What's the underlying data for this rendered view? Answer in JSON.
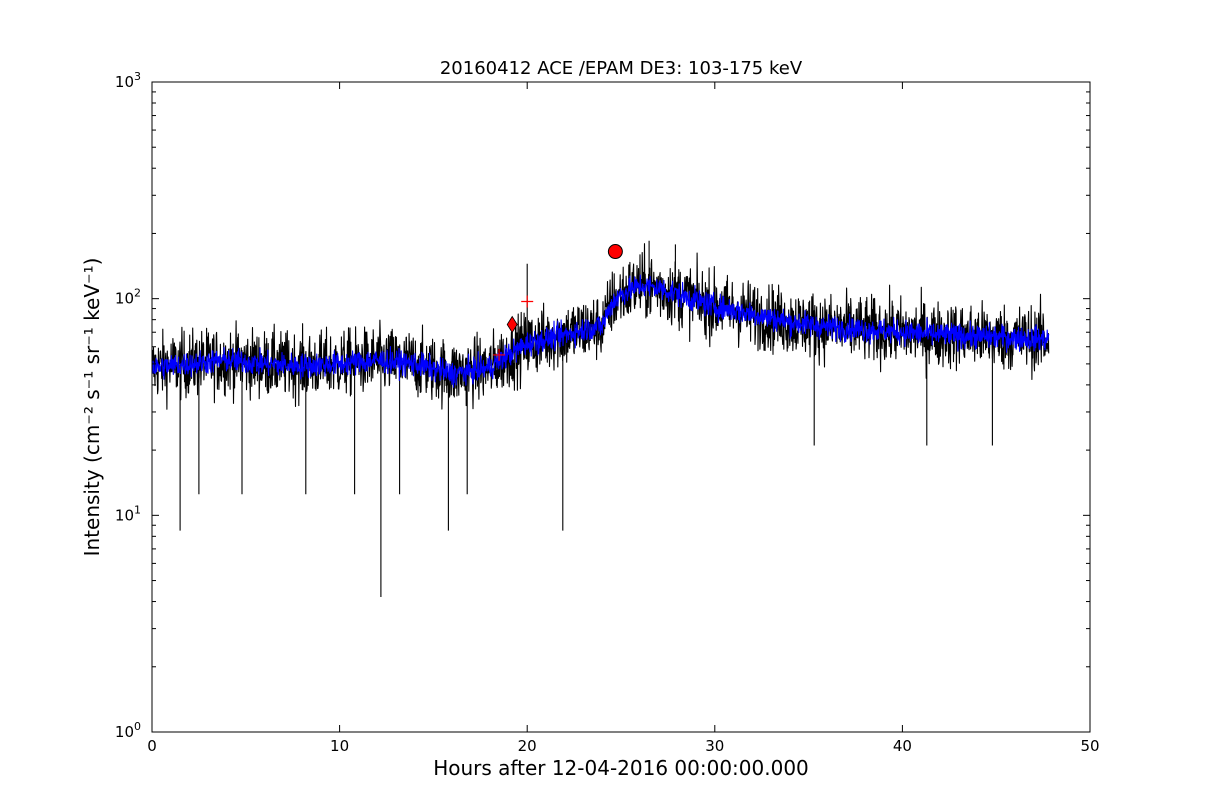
{
  "chart_data": {
    "type": "line",
    "title": "20160412 ACE /EPAM DE3: 103-175 keV",
    "xlabel": "Hours after 12-04-2016 00:00:00.000",
    "ylabel": "Intensity (cm⁻² s⁻¹ sr⁻¹ keV⁻¹)",
    "xlim": [
      0,
      50
    ],
    "ylim": [
      1,
      1000
    ],
    "yscale": "log",
    "grid": false,
    "x_ticks": [
      "0",
      "10",
      "20",
      "30",
      "40",
      "50"
    ],
    "y_ticks": [
      {
        "base": "10",
        "exp": "0",
        "value": 1
      },
      {
        "base": "10",
        "exp": "1",
        "value": 10
      },
      {
        "base": "10",
        "exp": "2",
        "value": 100
      },
      {
        "base": "10",
        "exp": "3",
        "value": 1000
      }
    ],
    "series": [
      {
        "color": "#000000",
        "x": [
          0,
          2,
          4,
          6,
          8,
          10,
          12,
          14,
          16,
          18,
          19,
          20,
          21,
          22,
          23,
          24,
          24.5,
          25,
          26,
          27,
          28,
          29,
          30,
          32,
          34,
          36,
          38,
          40,
          42,
          44,
          46,
          47.8
        ],
        "y": [
          48,
          50,
          52,
          50,
          49,
          50,
          52,
          50,
          45,
          48,
          55,
          62,
          65,
          68,
          72,
          75,
          95,
          105,
          115,
          112,
          105,
          98,
          92,
          85,
          78,
          74,
          72,
          70,
          68,
          67,
          66,
          65
        ],
        "spread": 0.6
      },
      {
        "color": "#0000ff",
        "x": [
          0,
          2,
          4,
          6,
          8,
          10,
          12,
          14,
          16,
          18,
          19,
          20,
          21,
          22,
          23,
          24,
          24.5,
          25,
          26,
          27,
          28,
          29,
          30,
          32,
          34,
          36,
          38,
          40,
          42,
          44,
          46,
          47.8
        ],
        "y": [
          48,
          50,
          52,
          50,
          49,
          50,
          52,
          50,
          45,
          48,
          55,
          62,
          65,
          68,
          72,
          75,
          95,
          105,
          115,
          112,
          105,
          98,
          92,
          85,
          78,
          74,
          72,
          70,
          68,
          67,
          66,
          65
        ],
        "spread": 0.22
      }
    ],
    "black_spikes": [
      {
        "x": 1.5,
        "y": 8.5
      },
      {
        "x": 12.2,
        "y": 4.2
      },
      {
        "x": 15.8,
        "y": 8.5
      },
      {
        "x": 21.9,
        "y": 8.5
      },
      {
        "x": 2.5,
        "y": 12.5
      },
      {
        "x": 4.8,
        "y": 12.5
      },
      {
        "x": 8.2,
        "y": 12.5
      },
      {
        "x": 10.8,
        "y": 12.5
      },
      {
        "x": 13.2,
        "y": 12.5
      },
      {
        "x": 16.8,
        "y": 12.5
      },
      {
        "x": 26.5,
        "y": 185
      },
      {
        "x": 27.9,
        "y": 178
      },
      {
        "x": 20,
        "y": 145
      },
      {
        "x": 35.3,
        "y": 21
      },
      {
        "x": 41.3,
        "y": 21
      },
      {
        "x": 44.8,
        "y": 21
      }
    ],
    "markers": [
      {
        "shape": "plus",
        "color": "#ff0000",
        "x": 18.5,
        "y": 55
      },
      {
        "shape": "diamond",
        "color": "#ff0000",
        "x": 19.2,
        "y": 76
      },
      {
        "shape": "plus",
        "color": "#ff0000",
        "x": 20.0,
        "y": 97
      },
      {
        "shape": "circle",
        "color": "#ff0000",
        "x": 24.7,
        "y": 165
      }
    ]
  }
}
